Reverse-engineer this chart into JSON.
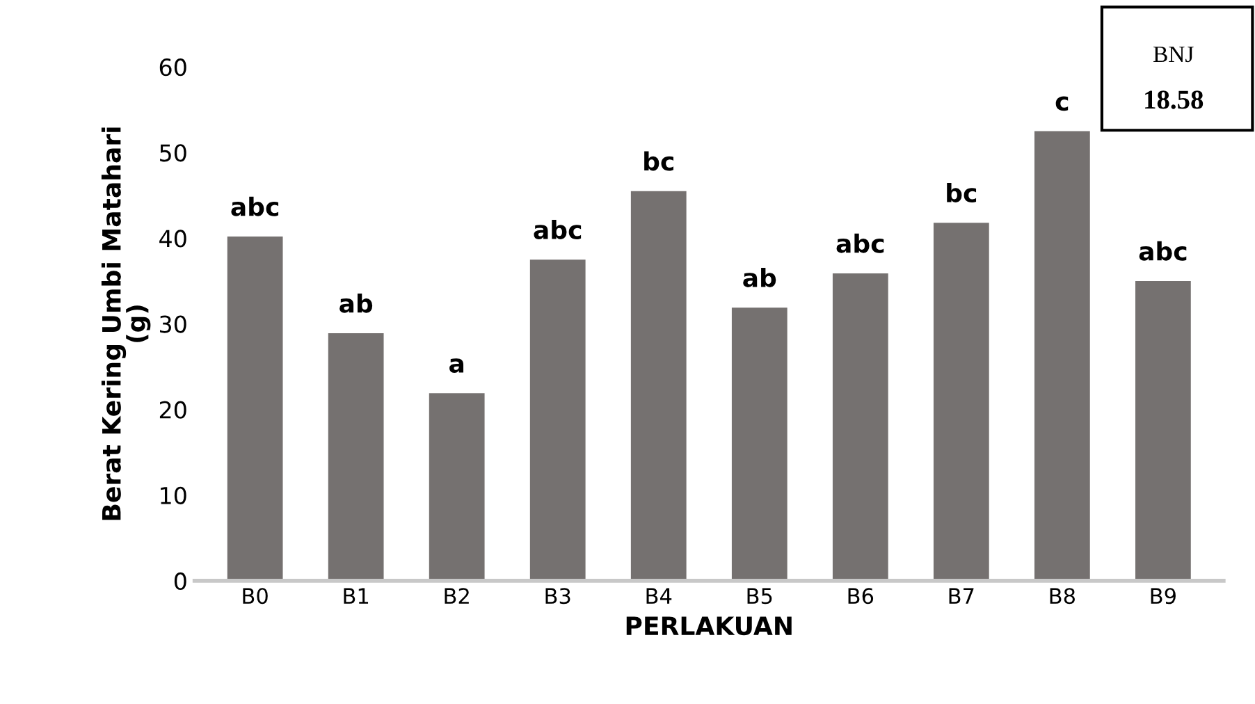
{
  "chart_data": {
    "type": "bar",
    "xlabel": "PERLAKUAN",
    "ylabel": "Berat Kering Umbi Matahari\n(g)",
    "categories": [
      "B0",
      "B1",
      "B2",
      "B3",
      "B4",
      "B5",
      "B6",
      "B7",
      "B8",
      "B9"
    ],
    "values": [
      40.2,
      28.9,
      21.9,
      37.5,
      45.5,
      31.9,
      35.9,
      41.8,
      52.5,
      35.0
    ],
    "value_labels": [
      "abc",
      "ab",
      "a",
      "abc",
      "bc",
      "ab",
      "abc",
      "bc",
      "c",
      "abc"
    ],
    "color": "#757170",
    "ylim": [
      0,
      60
    ],
    "yticks": [
      0,
      10,
      20,
      30,
      40,
      50,
      60
    ],
    "grid": false,
    "annotations": [
      "BNJ",
      "18.58"
    ]
  }
}
